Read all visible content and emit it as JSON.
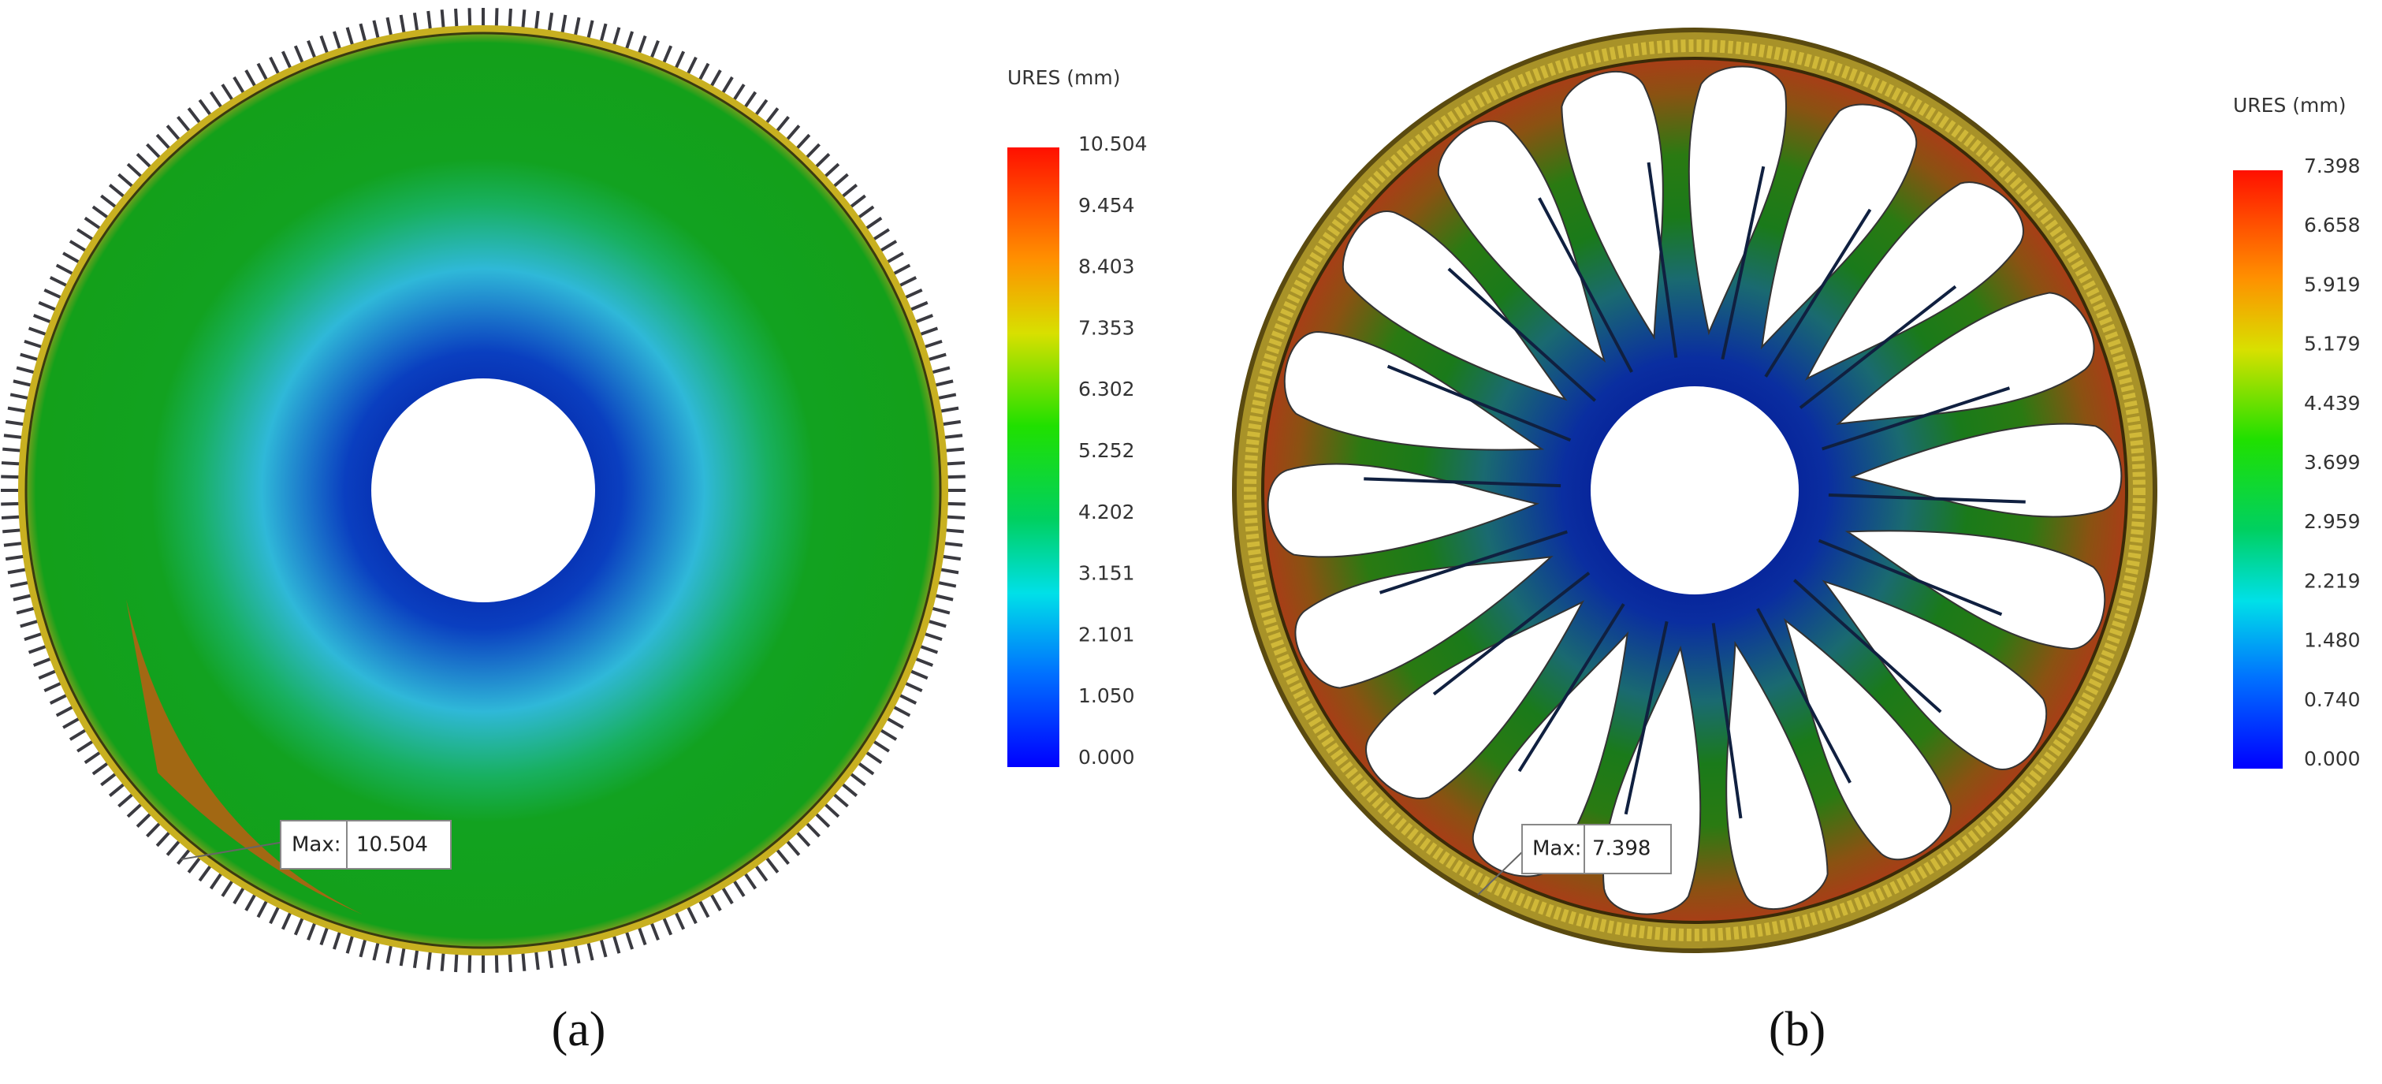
{
  "panels": [
    {
      "legend_title": "URES (mm)",
      "ticks": [
        "10.504",
        "9.454",
        "8.403",
        "7.353",
        "6.302",
        "5.252",
        "4.202",
        "3.151",
        "2.101",
        "1.050",
        "0.000"
      ],
      "max_label": "Max:",
      "max_value": "10.504",
      "caption": "(a)"
    },
    {
      "legend_title": "URES (mm)",
      "ticks": [
        "7.398",
        "6.658",
        "5.919",
        "5.179",
        "4.439",
        "3.699",
        "2.959",
        "2.219",
        "1.480",
        "0.740",
        "0.000"
      ],
      "max_label": "Max:",
      "max_value": "7.398",
      "caption": "(b)"
    }
  ]
}
